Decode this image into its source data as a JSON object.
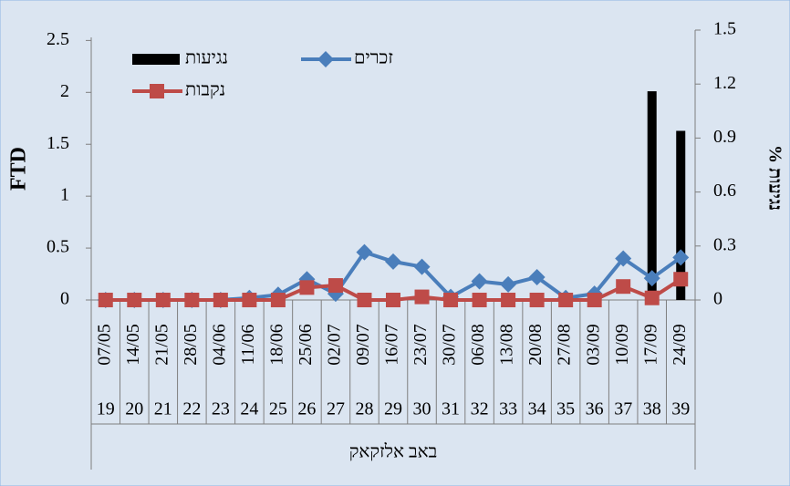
{
  "chart_data": {
    "type": "line",
    "y_label": "FTD",
    "y2_label": "% נגיעות",
    "categories": [
      "07/05",
      "14/05",
      "21/05",
      "28/05",
      "04/06",
      "11/06",
      "18/06",
      "25/06",
      "02/07",
      "09/07",
      "16/07",
      "23/07",
      "30/07",
      "06/08",
      "13/08",
      "20/08",
      "27/08",
      "03/09",
      "10/09",
      "17/09",
      "24/09"
    ],
    "week_numbers": [
      "19",
      "20",
      "21",
      "22",
      "23",
      "24",
      "25",
      "26",
      "27",
      "28",
      "29",
      "30",
      "31",
      "32",
      "33",
      "34",
      "35",
      "36",
      "37",
      "38",
      "39"
    ],
    "group_label": "באב אלזקאק",
    "ylim": [
      0,
      2.6
    ],
    "yticks": [
      0,
      0.5,
      1,
      1.5,
      2,
      2.5
    ],
    "y2lim": [
      0,
      1.5
    ],
    "y2ticks": [
      0,
      0.3,
      0.6,
      0.9,
      1.2,
      1.5
    ],
    "legend": "top-left",
    "series": [
      {
        "name": "נגיעות",
        "type": "bar",
        "axis": "y2",
        "color": "#000000",
        "values": [
          0,
          0,
          0,
          0,
          0,
          0,
          0,
          0,
          0,
          0,
          0,
          0,
          0,
          0,
          0,
          0,
          0,
          0,
          0,
          1.16,
          0.94
        ]
      },
      {
        "name": "זכרים",
        "type": "line",
        "color": "#4a7ebb",
        "values": [
          0,
          0,
          0,
          0,
          0,
          0.02,
          0.05,
          0.2,
          0.06,
          0.46,
          0.37,
          0.32,
          0.03,
          0.18,
          0.15,
          0.22,
          0.02,
          0.06,
          0.4,
          0.21,
          0.41
        ]
      },
      {
        "name": "נקבות",
        "type": "line",
        "color": "#be4b48",
        "values": [
          0,
          0,
          0,
          0,
          0,
          0,
          0,
          0.12,
          0.14,
          0,
          0,
          0.03,
          0,
          0,
          0,
          0,
          0,
          0,
          0.13,
          0.02,
          0.2
        ]
      }
    ]
  }
}
